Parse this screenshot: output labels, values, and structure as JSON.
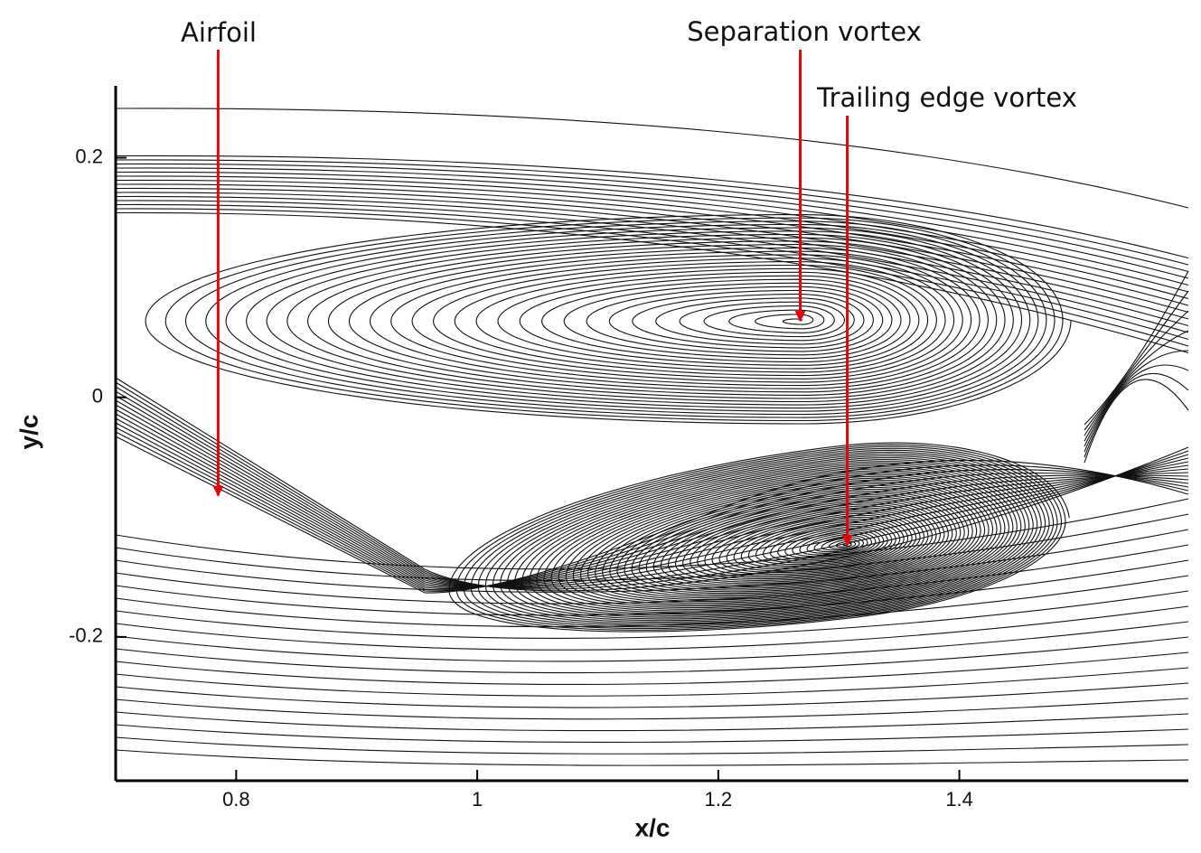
{
  "chart_data": {
    "type": "streamline",
    "x_label": "x/c",
    "y_label": "y/c",
    "xlim": [
      0.7,
      1.59
    ],
    "ylim": [
      -0.32,
      0.26
    ],
    "xticks": [
      0.8,
      1,
      1.2,
      1.4
    ],
    "yticks": [
      -0.2,
      0,
      0.2
    ],
    "annotations": [
      {
        "text": "Airfoil",
        "x": 0.785,
        "y": -0.082
      },
      {
        "text": "Separation vortex",
        "x": 1.268,
        "y": 0.064
      },
      {
        "text": "Trailing edge vortex",
        "x": 1.307,
        "y": -0.123
      }
    ],
    "annotation_color": "#e8000b"
  }
}
